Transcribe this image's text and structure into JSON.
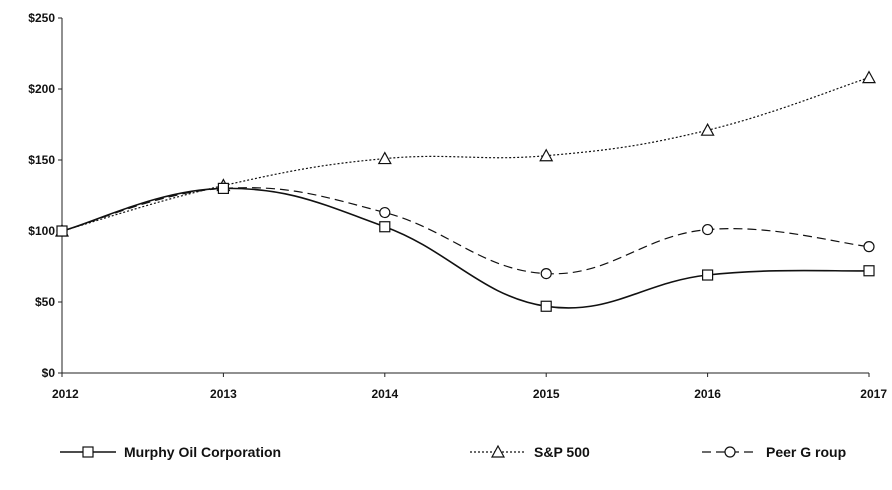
{
  "chart_data": {
    "type": "line",
    "title": "",
    "xlabel": "",
    "ylabel": "",
    "categories": [
      "2012",
      "2013",
      "2014",
      "2015",
      "2016",
      "2017"
    ],
    "ylim": [
      0,
      250
    ],
    "yticks": [
      0,
      50,
      100,
      150,
      200,
      250
    ],
    "ytick_labels": [
      "$0",
      "$50",
      "$100",
      "$150",
      "$200",
      "$250"
    ],
    "grid": false,
    "legend_position": "bottom",
    "series": [
      {
        "name": "Murphy Oil Corporation",
        "values": [
          100,
          130,
          103,
          47,
          69,
          72
        ],
        "marker": "square",
        "dash": "solid",
        "color": "#111111"
      },
      {
        "name": "S&P 500",
        "values": [
          100,
          132,
          151,
          153,
          171,
          208
        ],
        "marker": "triangle",
        "dash": "dotted",
        "color": "#111111"
      },
      {
        "name": "Peer G roup",
        "values": [
          100,
          130,
          113,
          70,
          101,
          89
        ],
        "marker": "circle",
        "dash": "dashed",
        "color": "#111111"
      }
    ]
  }
}
